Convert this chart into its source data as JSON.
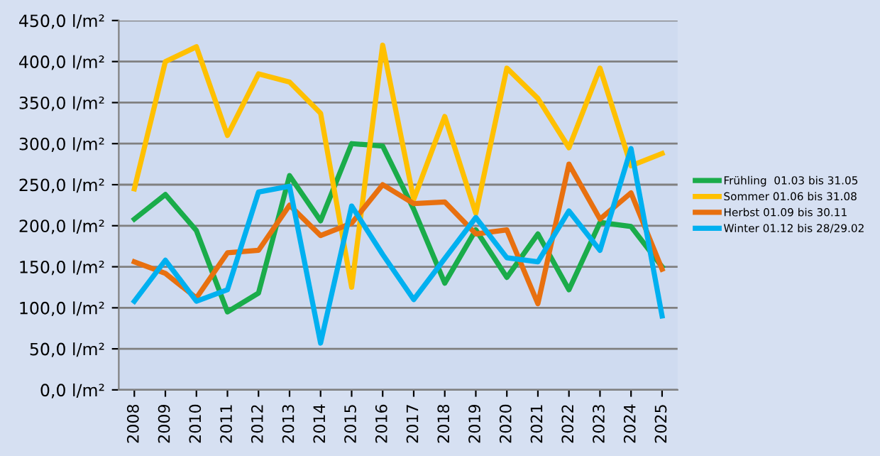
{
  "chart_data": {
    "type": "line",
    "categories": [
      "2008",
      "2009",
      "2010",
      "2011",
      "2012",
      "2013",
      "2014",
      "2015",
      "2016",
      "2017",
      "2018",
      "2019",
      "2020",
      "2021",
      "2022",
      "2023",
      "2024",
      "2025"
    ],
    "series": [
      {
        "name": "Frühling  01.03 bis 31.05",
        "color": "#1aac4a",
        "values": [
          208,
          238,
          194,
          95,
          118,
          261,
          206,
          300,
          297,
          220,
          130,
          195,
          137,
          190,
          122,
          204,
          199,
          150
        ]
      },
      {
        "name": "Sommer 01.06 bis 31.08",
        "color": "#ffc000",
        "values": [
          245,
          400,
          418,
          310,
          385,
          375,
          337,
          125,
          420,
          232,
          333,
          215,
          392,
          355,
          295,
          392,
          273,
          288
        ]
      },
      {
        "name": "Herbst 01.09 bis 30.11",
        "color": "#e8700f",
        "values": [
          156,
          142,
          112,
          167,
          170,
          225,
          188,
          203,
          250,
          227,
          229,
          190,
          195,
          105,
          275,
          208,
          240,
          147
        ]
      },
      {
        "name": "Winter 01.12 bis 28/29.02",
        "color": "#00b0f0",
        "values": [
          108,
          158,
          108,
          122,
          241,
          248,
          57,
          224,
          165,
          110,
          160,
          210,
          161,
          156,
          218,
          170,
          294,
          90
        ]
      }
    ],
    "ylim": [
      0,
      450
    ],
    "yticks": [
      {
        "value": 0,
        "label": "0,0 l/m²"
      },
      {
        "value": 50,
        "label": "50,0 l/m²"
      },
      {
        "value": 100,
        "label": "100,0 l/m²"
      },
      {
        "value": 150,
        "label": "150,0 l/m²"
      },
      {
        "value": 200,
        "label": "200,0 l/m²"
      },
      {
        "value": 250,
        "label": "250,0 l/m²"
      },
      {
        "value": 300,
        "label": "300,0 l/m²"
      },
      {
        "value": 350,
        "label": "350,0 l/m²"
      },
      {
        "value": 400,
        "label": "400,0 l/m²"
      },
      {
        "value": 450,
        "label": "450,0 l/m²"
      }
    ],
    "grid": "y",
    "legend": "right",
    "marker": "none",
    "line_style": "solid"
  }
}
